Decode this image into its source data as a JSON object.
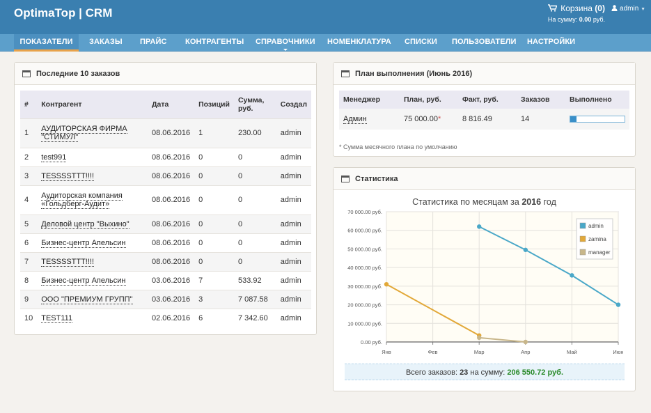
{
  "header": {
    "brand": "OptimaTop | CRM",
    "cart_label": "Корзина",
    "cart_count": "(0)",
    "cart_sum_label": "На сумму:",
    "cart_sum_value": "0.00",
    "cart_sum_currency": "руб.",
    "user": "admin"
  },
  "nav": [
    {
      "label": "ПОКАЗАТЕЛИ"
    },
    {
      "label": "ЗАКАЗЫ"
    },
    {
      "label": "ПРАЙС"
    },
    {
      "label": "КОНТРАГЕНТЫ"
    },
    {
      "label": "СПРАВОЧНИКИ"
    },
    {
      "label": "НОМЕНКЛАТУРА"
    },
    {
      "label": "СПИСКИ"
    },
    {
      "label": "ПОЛЬЗОВАТЕЛИ"
    },
    {
      "label": "НАСТРОЙКИ"
    }
  ],
  "orders": {
    "title": "Последние 10 заказов",
    "headers": [
      "#",
      "Контрагент",
      "Дата",
      "Позиций",
      "Сумма,",
      "руб.",
      "Создал"
    ],
    "rows": [
      {
        "n": "1",
        "name": "АУДИТОРСКАЯ ФИРМА",
        "name2": "\"СТИМУЛ\"",
        "date": "08.06.2016",
        "qty": "1",
        "sum": "230.00",
        "by": "admin"
      },
      {
        "n": "2",
        "name": "test991",
        "name2": "",
        "date": "08.06.2016",
        "qty": "0",
        "sum": "0",
        "by": "admin"
      },
      {
        "n": "3",
        "name": "TESSSSTTT!!!!",
        "name2": "",
        "date": "08.06.2016",
        "qty": "0",
        "sum": "0",
        "by": "admin"
      },
      {
        "n": "4",
        "name": "Аудиторская компания",
        "name2": "«Гольдберг-Аудит»",
        "date": "08.06.2016",
        "qty": "0",
        "sum": "0",
        "by": "admin"
      },
      {
        "n": "5",
        "name": "Деловой центр \"Выхино\"",
        "name2": "",
        "date": "08.06.2016",
        "qty": "0",
        "sum": "0",
        "by": "admin"
      },
      {
        "n": "6",
        "name": "Бизнес-центр Апельсин",
        "name2": "",
        "date": "08.06.2016",
        "qty": "0",
        "sum": "0",
        "by": "admin"
      },
      {
        "n": "7",
        "name": "TESSSSTTT!!!!",
        "name2": "",
        "date": "08.06.2016",
        "qty": "0",
        "sum": "0",
        "by": "admin"
      },
      {
        "n": "8",
        "name": "Бизнес-центр Апельсин",
        "name2": "",
        "date": "03.06.2016",
        "qty": "7",
        "sum": "533.92",
        "by": "admin"
      },
      {
        "n": "9",
        "name": "ООО \"ПРЕМИУМ ГРУПП\"",
        "name2": "",
        "date": "03.06.2016",
        "qty": "3",
        "sum": "7 087.58",
        "by": "admin"
      },
      {
        "n": "10",
        "name": "TEST111",
        "name2": "",
        "date": "02.06.2016",
        "qty": "6",
        "sum": "7 342.60",
        "by": "admin"
      }
    ]
  },
  "plan": {
    "title": "План выполнения (Июнь 2016)",
    "headers": [
      "Менеджер",
      "План, руб.",
      "Факт, руб.",
      "Заказов",
      "Выполнено"
    ],
    "row": {
      "manager": "Админ",
      "plan": "75 000.00",
      "plan_mark": "*",
      "fact": "8 816.49",
      "orders": "14",
      "done_fraction": 0.12
    },
    "note": "* Сумма месячного плана по умолчанию"
  },
  "stats": {
    "title": "Статистика",
    "chart_title_prefix": "Статистика по месяцам за",
    "chart_title_year": "2016",
    "chart_title_suffix": "год",
    "totals_label": "Всего заказов:",
    "totals_count": "23",
    "totals_sum_label": "на сумму:",
    "totals_sum": "206 550.72 руб."
  },
  "chart_data": {
    "type": "line",
    "title": "Статистика по месяцам за 2016 год",
    "x": [
      "Янв",
      "Фев",
      "Мар",
      "Апр",
      "Май",
      "Июн"
    ],
    "ylim": [
      0,
      70000
    ],
    "yticks": [
      "0.00 руб.",
      "10 000.00 руб.",
      "20 000.00 руб.",
      "30 000.00 руб.",
      "40 000.00 руб.",
      "50 000.00 руб.",
      "60 000.00 руб.",
      "70 000.00 руб."
    ],
    "yticks_values": [
      0,
      10000,
      20000,
      30000,
      40000,
      50000,
      60000,
      70000
    ],
    "grid": true,
    "legend_position": "top-right",
    "series": [
      {
        "name": "admin",
        "color": "#4aa8c8",
        "points": [
          [
            2,
            62000
          ],
          [
            3,
            49500
          ],
          [
            4,
            35800
          ],
          [
            5,
            20000
          ]
        ]
      },
      {
        "name": "zamina",
        "color": "#e2a838",
        "points": [
          [
            0,
            31000
          ],
          [
            2,
            3500
          ]
        ]
      },
      {
        "name": "manager",
        "color": "#c8b68a",
        "points": [
          [
            2,
            2300
          ],
          [
            3,
            0
          ]
        ]
      }
    ]
  }
}
